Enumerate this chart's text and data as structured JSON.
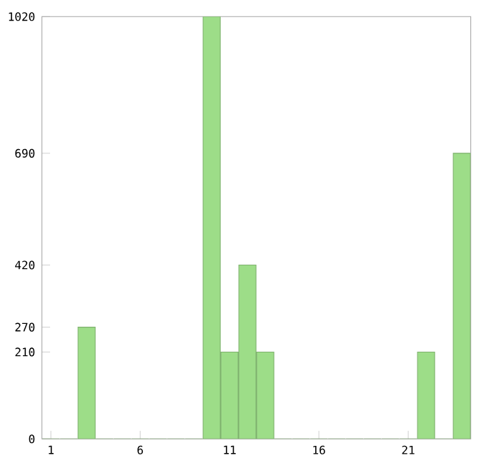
{
  "chart_data": {
    "type": "bar",
    "categories": [
      "1",
      null,
      null,
      null,
      null,
      "6",
      null,
      null,
      null,
      null,
      "11",
      null,
      null,
      null,
      null,
      "16",
      null,
      null,
      null,
      null,
      "21",
      null,
      null,
      null
    ],
    "values": [
      0,
      0,
      270,
      0,
      0,
      0,
      0,
      0,
      0,
      1020,
      210,
      420,
      210,
      0,
      0,
      0,
      0,
      0,
      0,
      0,
      0,
      210,
      0,
      690
    ],
    "color": "#9ddd88",
    "ylim": [
      0,
      1020
    ],
    "yticks": [
      0,
      210,
      270,
      420,
      690,
      1020
    ],
    "grid": false
  }
}
